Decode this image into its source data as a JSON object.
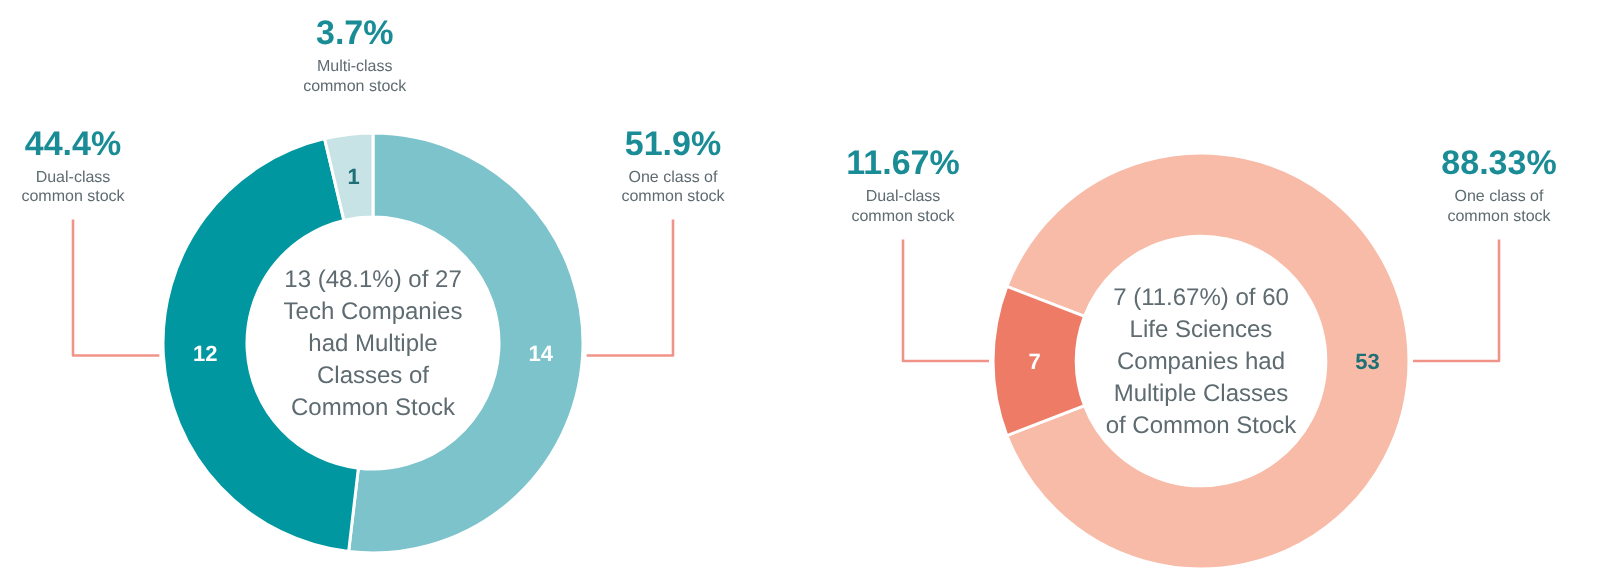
{
  "chart_data": [
    {
      "type": "donut",
      "title": "13 (48.1%) of 27 Tech Companies had Multiple Classes of Common Stock",
      "categories": [
        "One class of common stock",
        "Dual-class common stock",
        "Multi-class common stock"
      ],
      "values": [
        14,
        12,
        1
      ],
      "colors": [
        "#7cc3cc",
        "#0097a0",
        "#c7e3e6"
      ],
      "data_labels": true,
      "annotations": [
        "51.9%",
        "44.4%",
        "3.7%"
      ]
    },
    {
      "type": "donut",
      "title": "7 (11.67%) of 60 Life Sciences Companies had Multiple Classes of Common Stock",
      "categories": [
        "One class of common stock",
        "Dual-class common stock"
      ],
      "values": [
        53,
        7
      ],
      "colors": [
        "#f8bba8",
        "#ee7b65"
      ],
      "data_labels": true,
      "annotations": [
        "88.33%",
        "11.67%"
      ]
    }
  ]
}
